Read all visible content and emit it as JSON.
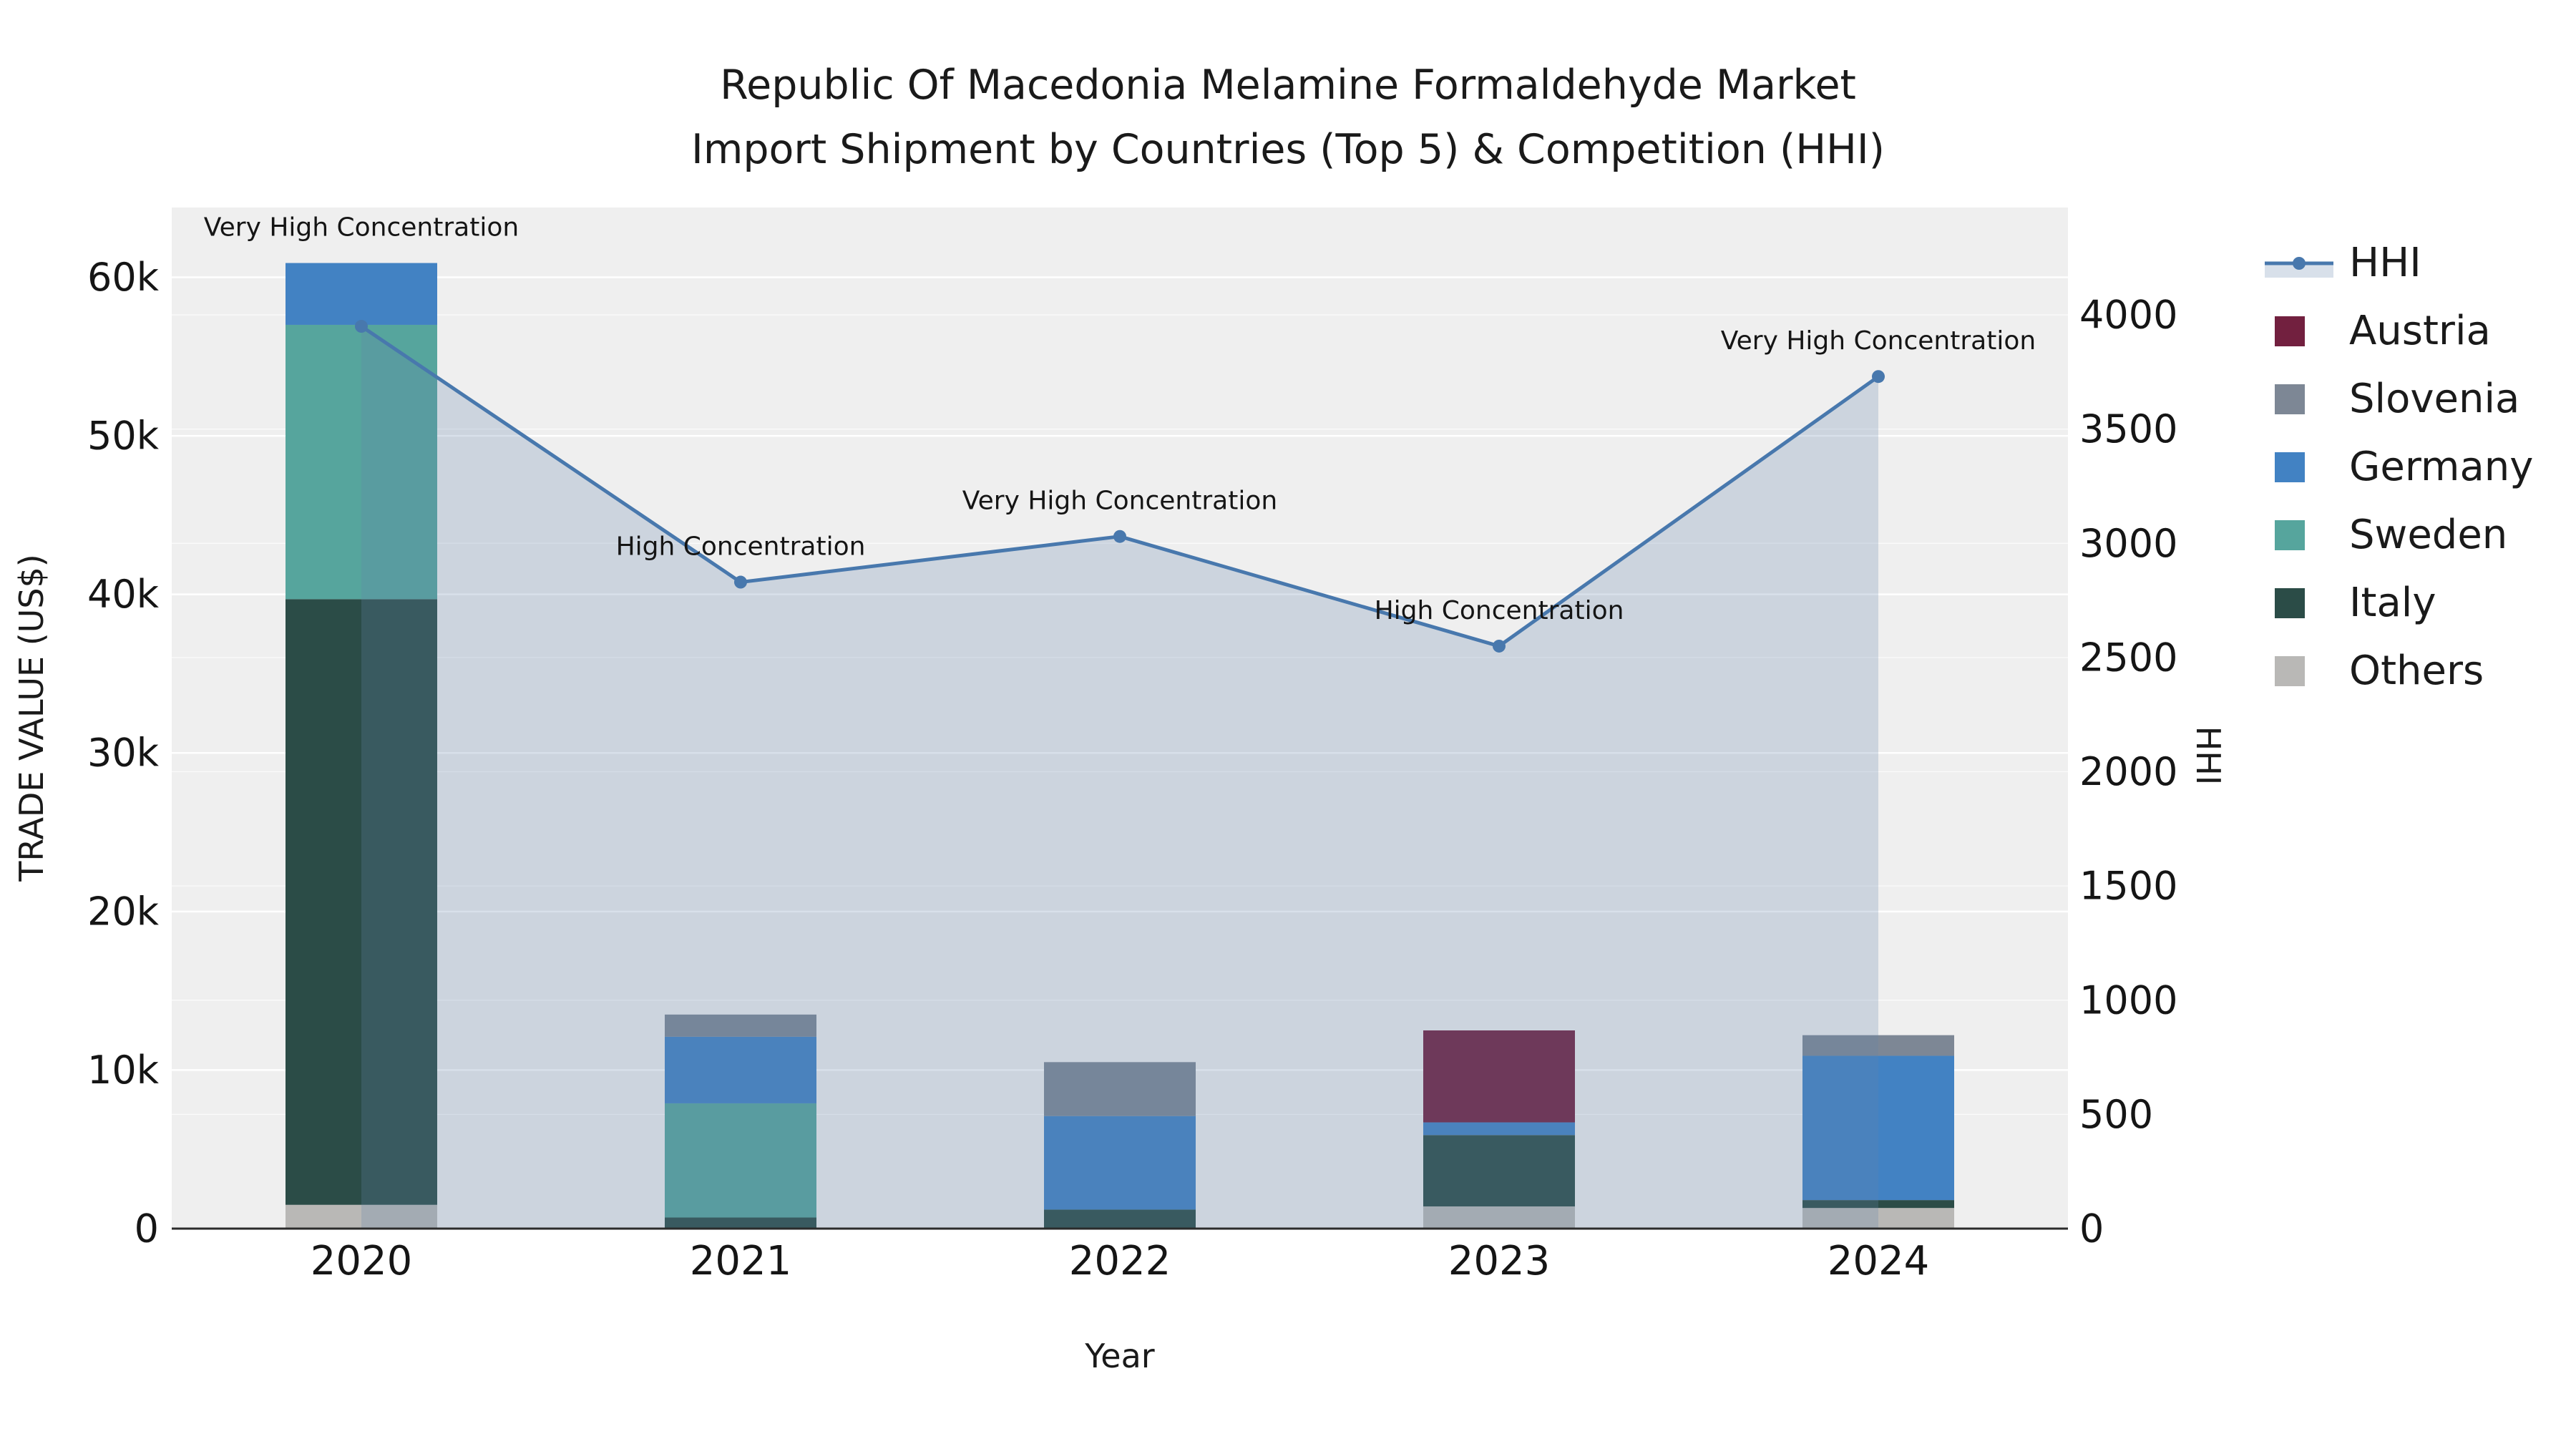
{
  "title": {
    "line1": "Republic Of Macedonia Melamine Formaldehyde Market",
    "line2": "Import Shipment by Countries (Top 5) & Competition (HHI)"
  },
  "axes": {
    "x_title": "Year",
    "y_left_title": "TRADE VALUE (US$)",
    "y_right_title": "HHI",
    "y_left_ticks": [
      "0",
      "10k",
      "20k",
      "30k",
      "40k",
      "50k",
      "60k"
    ],
    "y_left_tick_values": [
      0,
      10000,
      20000,
      30000,
      40000,
      50000,
      60000
    ],
    "y_right_ticks": [
      "0",
      "500",
      "1000",
      "1500",
      "2000",
      "2500",
      "3000",
      "3500",
      "4000"
    ],
    "y_right_tick_values": [
      0,
      500,
      1000,
      1500,
      2000,
      2500,
      3000,
      3500,
      4000
    ]
  },
  "colors": {
    "plot_background": "#efefef",
    "gridline": "#ffffff",
    "axis_line": "#2b2b2b",
    "hhi_line": "#4878ad",
    "hhi_area_fill": "rgba(100,130,170,0.25)"
  },
  "chart_data": {
    "type": "bar",
    "subtype": "stacked-bars-with-line-overlay",
    "categories": [
      "2020",
      "2021",
      "2022",
      "2023",
      "2024"
    ],
    "y_left_max": 64400,
    "y_right_max": 4470,
    "bar_series": [
      {
        "name": "Others",
        "color": "#b9b8b6",
        "values": [
          1500,
          0,
          0,
          1400,
          1300
        ]
      },
      {
        "name": "Italy",
        "color": "#2b4c47",
        "values": [
          38200,
          700,
          1200,
          4500,
          500
        ]
      },
      {
        "name": "Sweden",
        "color": "#56a59d",
        "values": [
          17300,
          7200,
          0,
          0,
          0
        ]
      },
      {
        "name": "Germany",
        "color": "#4282c3",
        "values": [
          3900,
          4200,
          5900,
          800,
          9100
        ]
      },
      {
        "name": "Slovenia",
        "color": "#7d8795",
        "values": [
          0,
          1400,
          3400,
          0,
          1300
        ]
      },
      {
        "name": "Austria",
        "color": "#72203f",
        "values": [
          0,
          0,
          0,
          5800,
          0
        ]
      }
    ],
    "line_series": {
      "name": "HHI",
      "color": "#4878ad",
      "values": [
        3950,
        2830,
        3030,
        2550,
        3730
      ],
      "annotations": [
        "Very High Concentration",
        "High Concentration",
        "Very High Concentration",
        "High Concentration",
        "Very High Concentration"
      ]
    }
  },
  "legend": {
    "items": [
      {
        "label": "HHI",
        "type": "line",
        "color": "#4878ad"
      },
      {
        "label": "Austria",
        "type": "swatch",
        "color": "#72203f"
      },
      {
        "label": "Slovenia",
        "type": "swatch",
        "color": "#7d8795"
      },
      {
        "label": "Germany",
        "type": "swatch",
        "color": "#4282c3"
      },
      {
        "label": "Sweden",
        "type": "swatch",
        "color": "#56a59d"
      },
      {
        "label": "Italy",
        "type": "swatch",
        "color": "#2b4c47"
      },
      {
        "label": "Others",
        "type": "swatch",
        "color": "#b9b8b6"
      }
    ]
  }
}
